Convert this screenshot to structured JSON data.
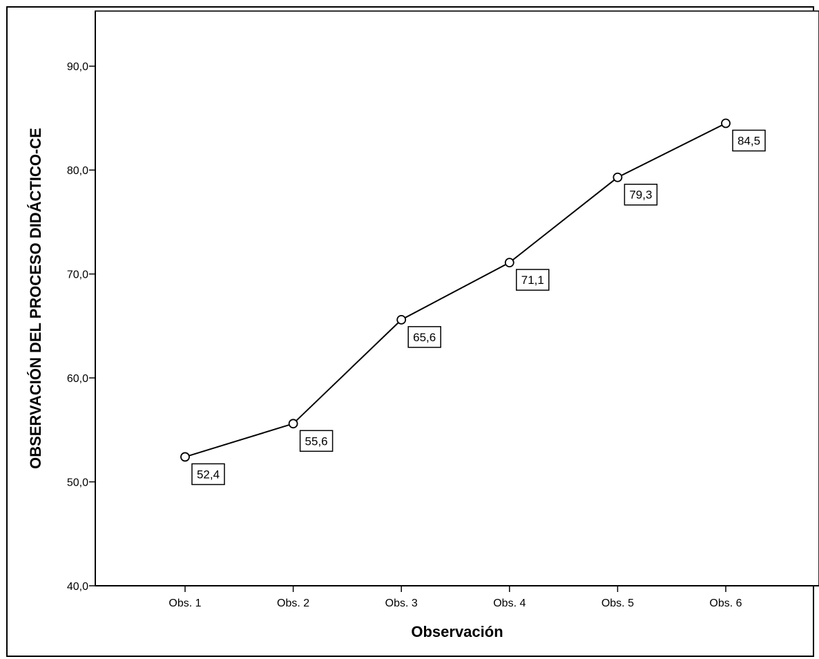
{
  "chart_data": {
    "type": "line",
    "categories": [
      "Obs. 1",
      "Obs. 2",
      "Obs. 3",
      "Obs. 4",
      "Obs. 5",
      "Obs. 6"
    ],
    "values": [
      52.4,
      55.6,
      65.6,
      71.1,
      79.3,
      84.5
    ],
    "data_labels": [
      "52,4",
      "55,6",
      "65,6",
      "71,1",
      "79,3",
      "84,5"
    ],
    "xlabel": "Observación",
    "ylabel": "OBSERVACIÓN DEL PROCESO DIDÁCTICO-CE",
    "ylim": [
      40,
      95.3
    ],
    "yticks": [
      40,
      50,
      60,
      70,
      80,
      90
    ],
    "ytick_labels": [
      "40,0",
      "50,0",
      "60,0",
      "70,0",
      "80,0",
      "90,0"
    ],
    "grid": false,
    "legend": "none",
    "marker": "open-circle",
    "line_color": "#000000"
  }
}
